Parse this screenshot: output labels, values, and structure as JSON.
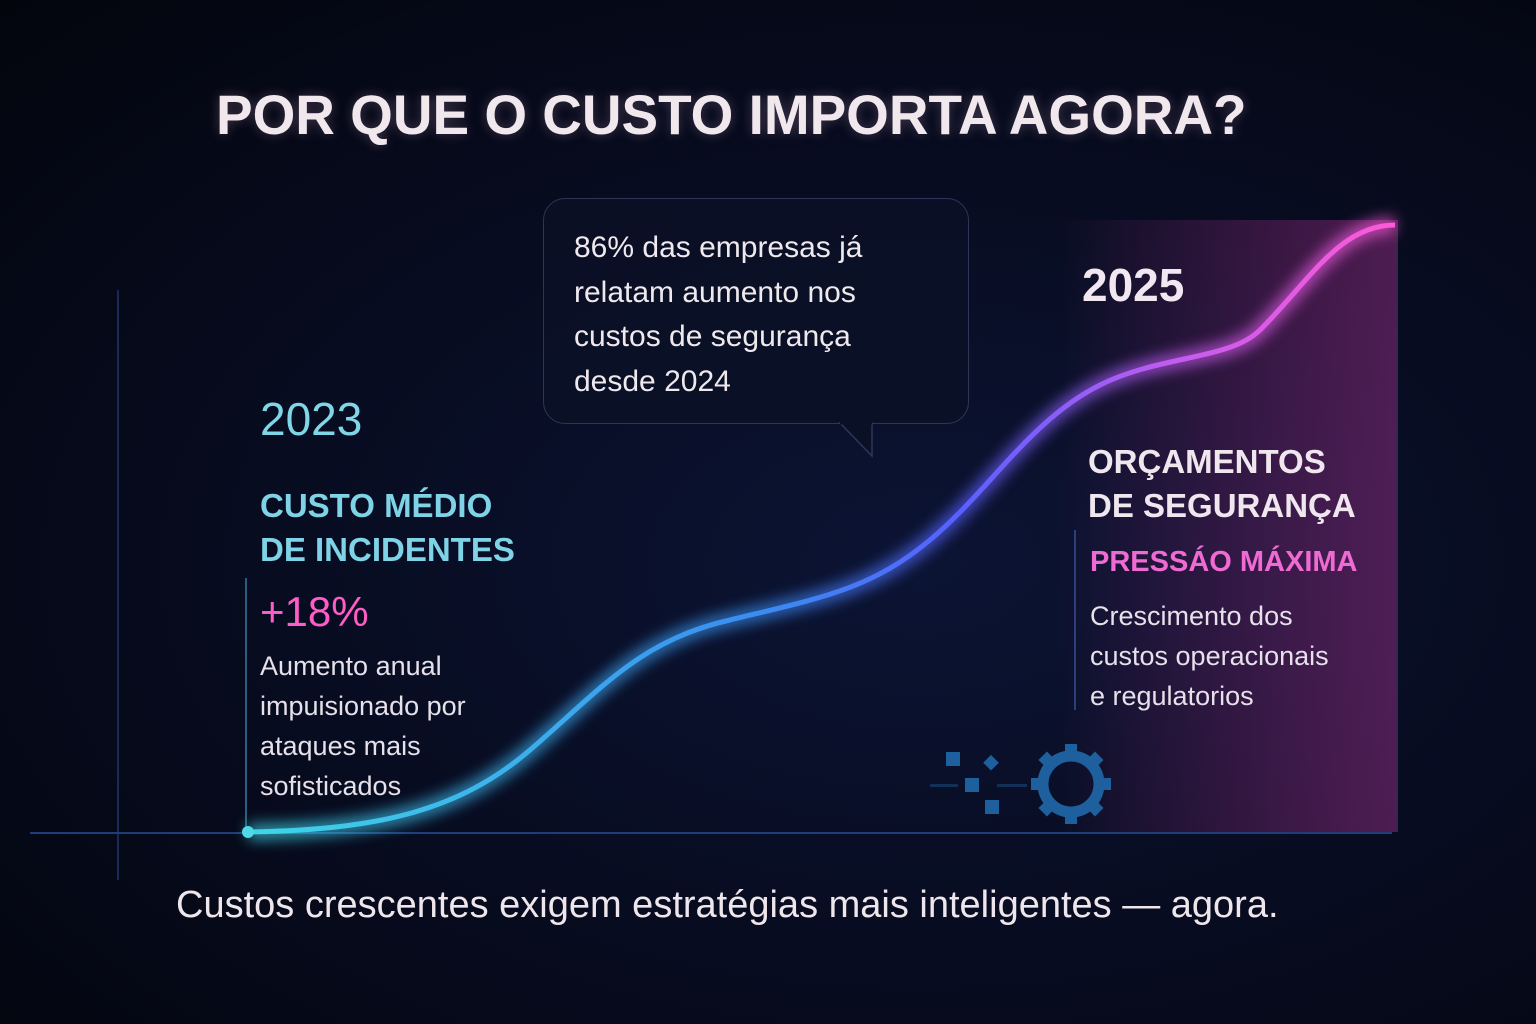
{
  "title": "POR QUE O CUSTO IMPORTA AGORA?",
  "callout": {
    "lines": [
      "86% das empresas já",
      "relatam aumento nos",
      "custos de segurança",
      "desde 2024"
    ]
  },
  "left": {
    "year": "2023",
    "heading_lines": [
      "CUSTO MÉDIO",
      "DE INCIDENTES"
    ],
    "stat": "+18%",
    "body_lines": [
      "Aumento anual",
      "impuisionado por",
      "ataques mais",
      "sofisticados"
    ]
  },
  "right": {
    "year": "2025",
    "heading_lines": [
      "ORÇAMENTOS",
      "DE SEGURANÇA"
    ],
    "subheading": "PRESSÁO MÁXIMA",
    "body_lines": [
      "Crescimento dos",
      "custos operacionais",
      "e regulatorios"
    ]
  },
  "footer": "Custos crescentes exigem estratégias mais inteligentes — agora.",
  "colors": {
    "curve_start": "#3fd6e8",
    "curve_mid": "#3a66ff",
    "curve_end": "#ff5ad8",
    "accent_pink": "#ff5cc8",
    "accent_cyan": "#7fd3e6",
    "icon_blue": "#1e5f9e"
  },
  "icons": [
    "pixels-icon",
    "gear-icon"
  ]
}
